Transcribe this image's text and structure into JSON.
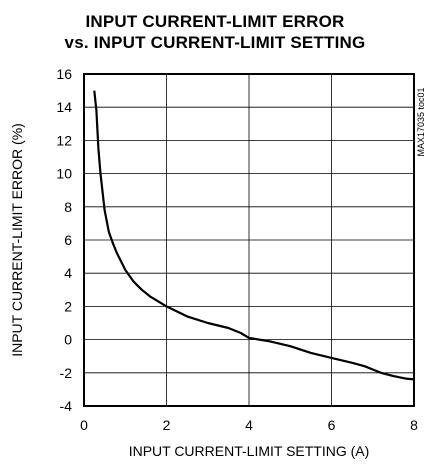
{
  "chart_data": {
    "type": "line",
    "title_line1": "INPUT CURRENT-LIMIT ERROR",
    "title_line2": "vs. INPUT CURRENT-LIMIT SETTING",
    "xlabel": "INPUT CURRENT-LIMIT SETTING (A)",
    "ylabel": "INPUT CURRENT-LIMIT ERROR (%)",
    "side_note": "MAX17035 toc01",
    "xlim": [
      0,
      8
    ],
    "ylim": [
      -4,
      16
    ],
    "x_ticks": [
      0,
      2,
      4,
      6,
      8
    ],
    "y_ticks": [
      -4,
      -2,
      0,
      2,
      4,
      6,
      8,
      10,
      12,
      14,
      16
    ],
    "grid": true,
    "series": [
      {
        "x": [
          0.25,
          0.3,
          0.35,
          0.4,
          0.5,
          0.6,
          0.7,
          0.8,
          1.0,
          1.2,
          1.4,
          1.6,
          1.8,
          2.0,
          2.5,
          3.0,
          3.5,
          3.8,
          4.0,
          4.5,
          5.0,
          5.5,
          6.0,
          6.5,
          6.8,
          7.0,
          7.2,
          7.5,
          7.8,
          8.0
        ],
        "y": [
          15.0,
          13.8,
          11.5,
          10.0,
          7.8,
          6.5,
          5.8,
          5.2,
          4.2,
          3.5,
          3.0,
          2.6,
          2.3,
          2.0,
          1.4,
          1.0,
          0.7,
          0.4,
          0.1,
          -0.1,
          -0.4,
          -0.8,
          -1.1,
          -1.4,
          -1.6,
          -1.8,
          -2.0,
          -2.2,
          -2.35,
          -2.4
        ]
      }
    ]
  }
}
